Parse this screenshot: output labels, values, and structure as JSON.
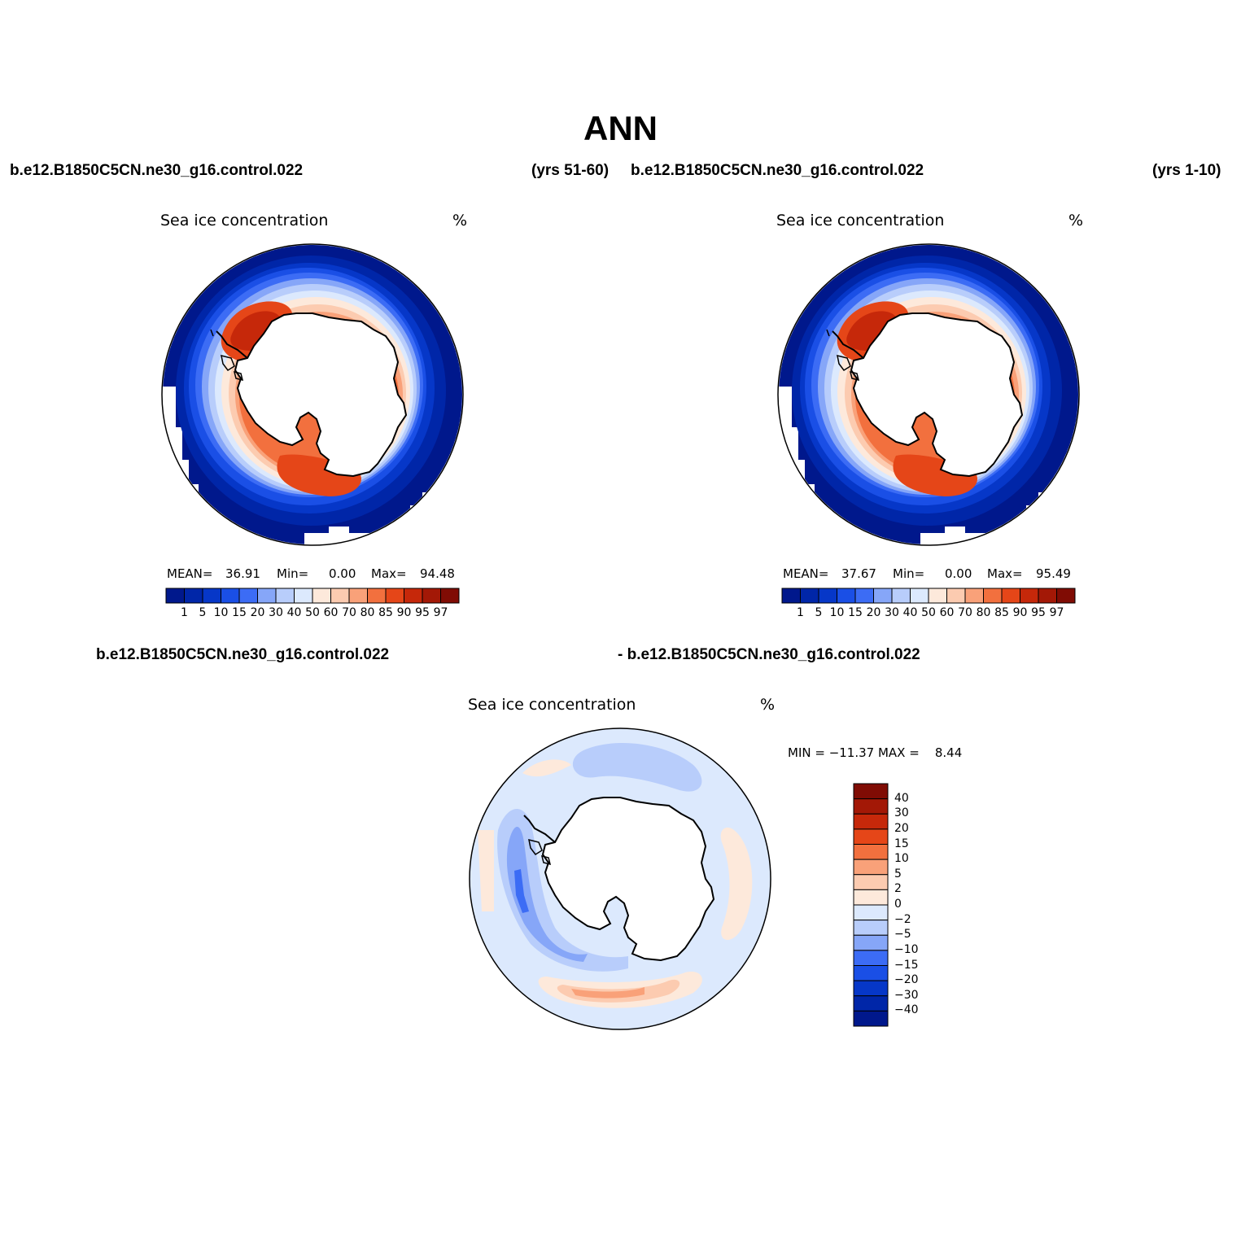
{
  "title": "ANN",
  "cases": {
    "top_left_case": "b.e12.B1850C5CN.ne30_g16.control.022",
    "top_left_years": "(yrs 51-60)",
    "top_right_case": "b.e12.B1850C5CN.ne30_g16.control.022",
    "top_right_years": "(yrs 1-10)",
    "diff_left_case": "b.e12.B1850C5CN.ne30_g16.control.022",
    "diff_right_case": "- b.e12.B1850C5CN.ne30_g16.control.022"
  },
  "panels": [
    {
      "variable": "Sea ice concentration",
      "units": "%",
      "mean_label": "MEAN=",
      "mean": "36.91",
      "min_label": "Min=",
      "min": "0.00",
      "max_label": "Max=",
      "max": "94.48"
    },
    {
      "variable": "Sea ice concentration",
      "units": "%",
      "mean_label": "MEAN=",
      "mean": "37.67",
      "min_label": "Min=",
      "min": "0.00",
      "max_label": "Max=",
      "max": "95.49"
    }
  ],
  "diff_panel": {
    "variable": "Sea ice concentration",
    "units": "%",
    "minmax_text": "MIN = −11.37 MAX =    8.44"
  },
  "colorbar_levels": [
    "1",
    "5",
    "10",
    "15",
    "20",
    "30",
    "40",
    "50",
    "60",
    "70",
    "80",
    "85",
    "90",
    "95",
    "97"
  ],
  "colorbar_colors": [
    "#00188c",
    "#0026a8",
    "#0637c8",
    "#1a4fe6",
    "#3c6cf5",
    "#86a6f8",
    "#b8cdfb",
    "#dce9fd",
    "#fde9db",
    "#fccbb0",
    "#f9a179",
    "#f2703e",
    "#e54618",
    "#c6280a",
    "#a31806",
    "#800c04"
  ],
  "diff_levels": [
    "40",
    "30",
    "20",
    "15",
    "10",
    "5",
    "2",
    "0",
    "−2",
    "−5",
    "−10",
    "−15",
    "−20",
    "−30",
    "−40"
  ],
  "diff_colors": [
    "#800c04",
    "#a31806",
    "#c6280a",
    "#e54618",
    "#f2703e",
    "#f9a179",
    "#fccbb0",
    "#fde9db",
    "#dce9fd",
    "#b8cdfb",
    "#86a6f8",
    "#3c6cf5",
    "#1a4fe6",
    "#0637c8",
    "#0026a8",
    "#00188c"
  ]
}
